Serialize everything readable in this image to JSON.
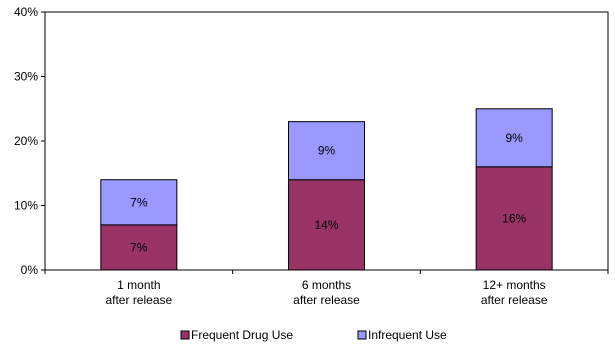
{
  "chart_data": {
    "type": "bar",
    "stacked": true,
    "title": "",
    "xlabel": "",
    "ylabel": "",
    "ylim": [
      0,
      40
    ],
    "yticks": [
      "0%",
      "10%",
      "20%",
      "30%",
      "40%"
    ],
    "grid": false,
    "legend_position": "bottom",
    "categories": [
      [
        "1 month",
        "after release"
      ],
      [
        "6 months",
        "after release"
      ],
      [
        "12+ months",
        "after release"
      ]
    ],
    "series": [
      {
        "name": "Frequent Drug Use",
        "values": [
          7,
          14,
          16
        ],
        "labels": [
          "7%",
          "14%",
          "16%"
        ],
        "color": "#993366"
      },
      {
        "name": "Infrequent Use",
        "values": [
          7,
          9,
          9
        ],
        "labels": [
          "7%",
          "9%",
          "9%"
        ],
        "color": "#9999ff"
      }
    ]
  }
}
